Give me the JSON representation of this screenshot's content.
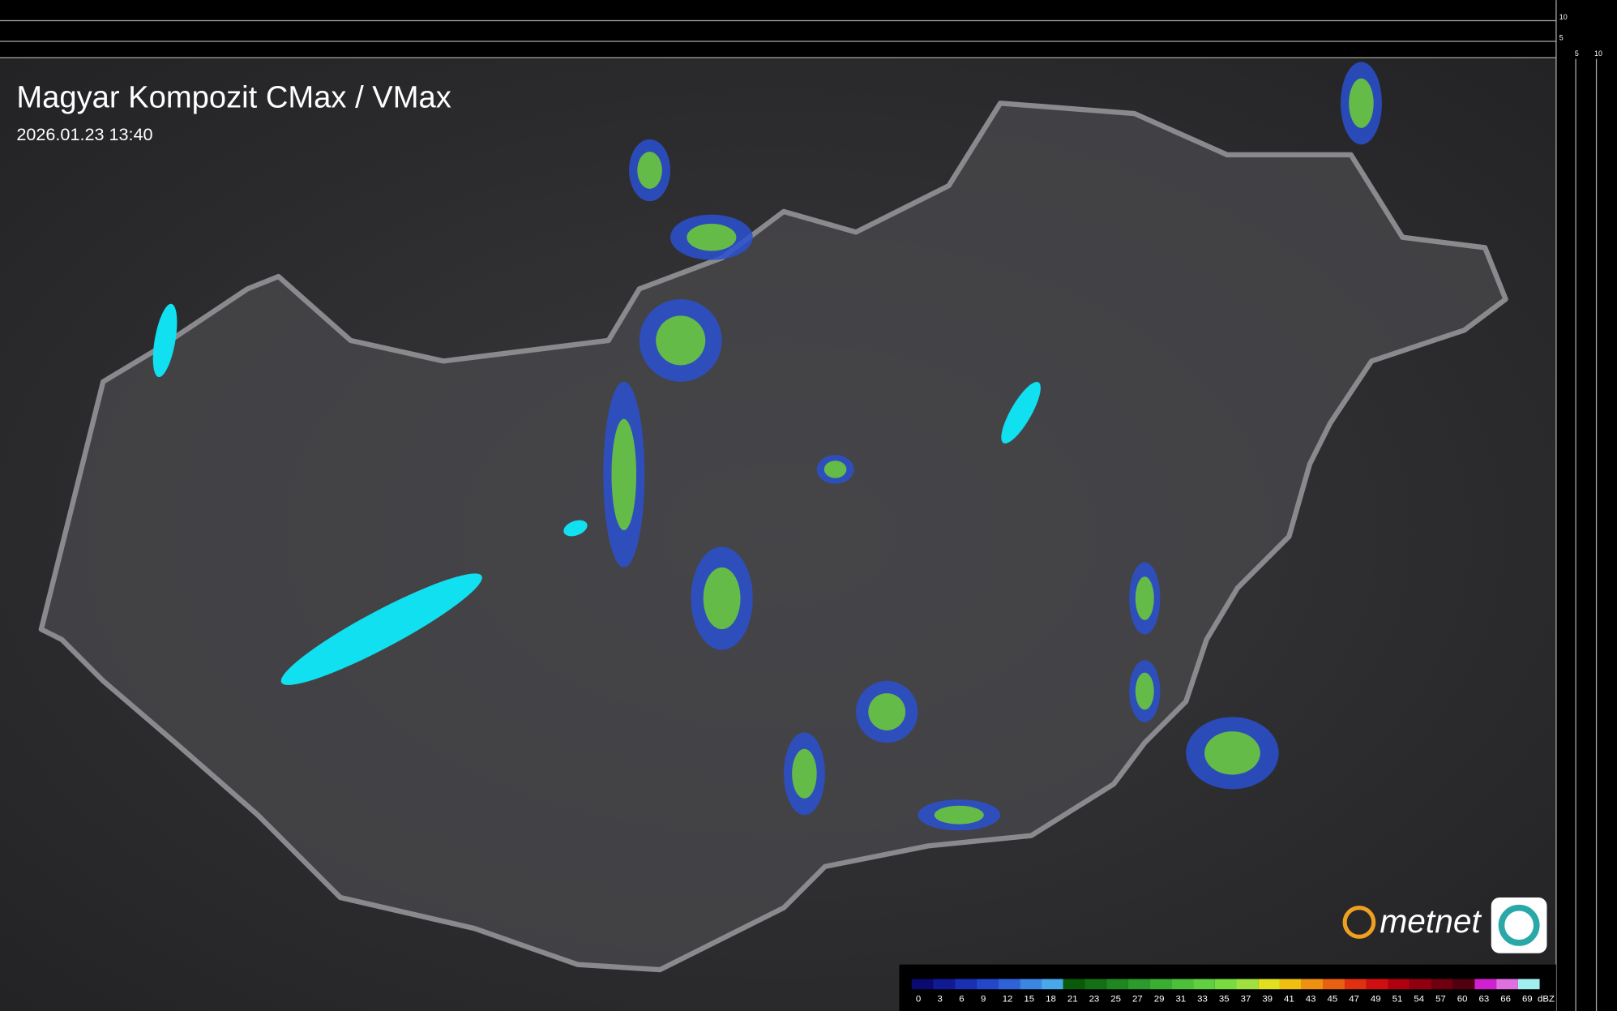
{
  "header": {
    "title": "Magyar Kompozit CMax / VMax",
    "timestamp": "2026.01.23 13:40"
  },
  "side_axis": {
    "top_labels": [
      10,
      5
    ],
    "bottom_labels": [
      5,
      10
    ]
  },
  "legend": {
    "unit": "dBZ",
    "values": [
      0,
      3,
      6,
      9,
      12,
      15,
      18,
      21,
      23,
      25,
      27,
      29,
      31,
      33,
      35,
      37,
      39,
      41,
      43,
      45,
      47,
      49,
      51,
      54,
      57,
      60,
      63,
      66,
      69
    ],
    "colors": [
      "#0a0a70",
      "#101a92",
      "#1a30b2",
      "#2446c8",
      "#2f62d8",
      "#3a86e2",
      "#48a8ea",
      "#0a5a0a",
      "#157015",
      "#208620",
      "#2c9a2c",
      "#3aae30",
      "#4cc038",
      "#60d040",
      "#78dc40",
      "#a0e040",
      "#e0e020",
      "#f0c010",
      "#f09010",
      "#e86010",
      "#e03010",
      "#d01010",
      "#b00010",
      "#900010",
      "#700010",
      "#500010",
      "#d020d0",
      "#e070e0",
      "#a0f0f0"
    ]
  },
  "logo": {
    "text": "metnet"
  }
}
